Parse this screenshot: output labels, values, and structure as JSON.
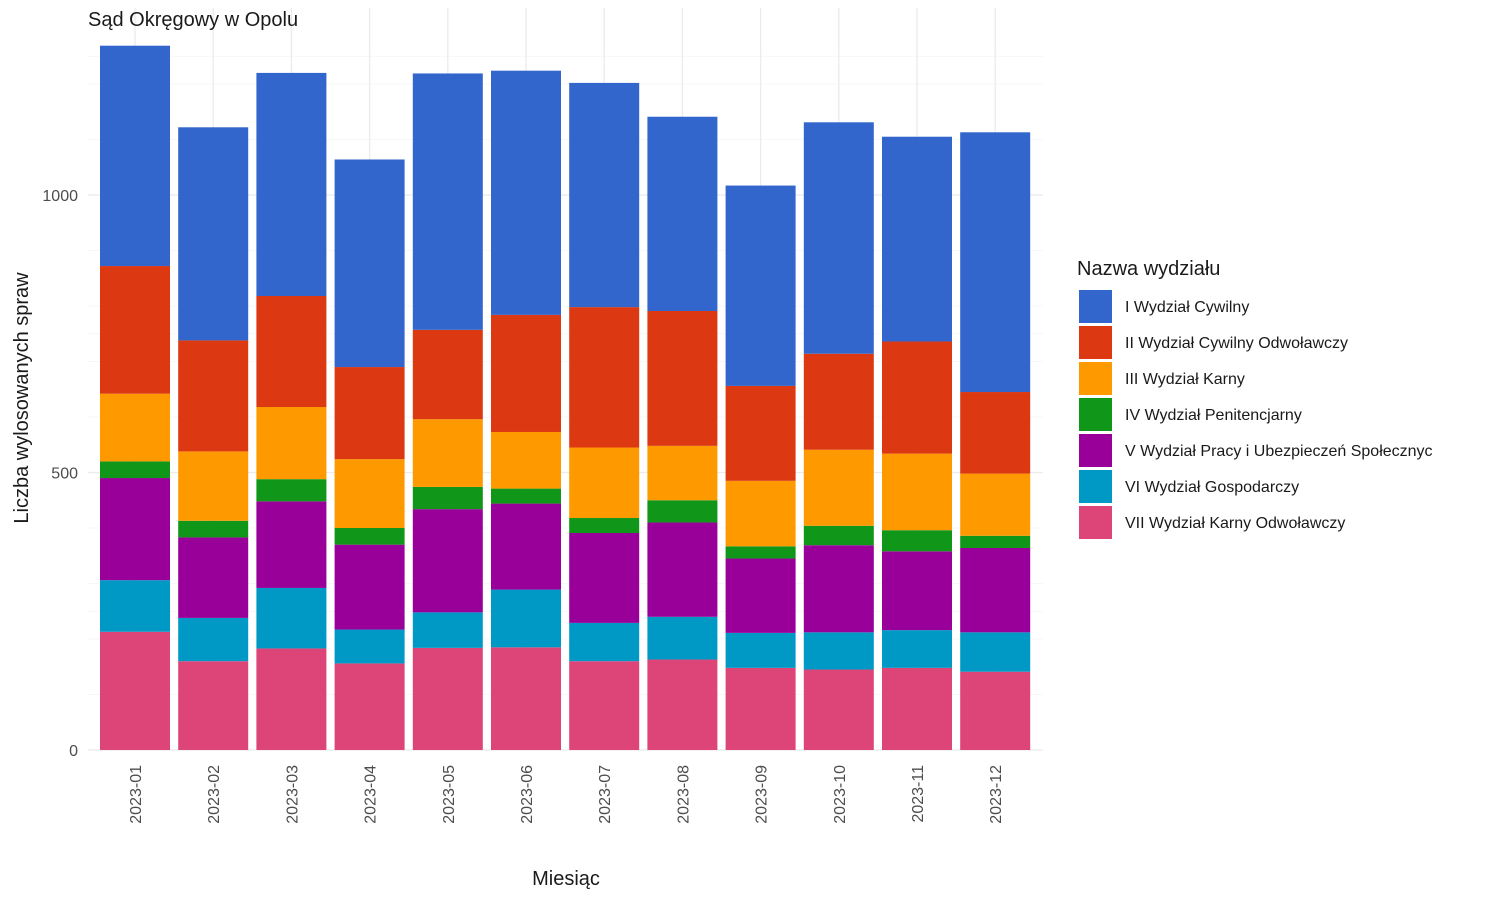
{
  "chart_data": {
    "type": "bar",
    "stacked": true,
    "title": "Sąd Okręgowy w Opolu",
    "xlabel": "Miesiąc",
    "ylabel": "Liczba wylosowanych spraw",
    "ylim": [
      0,
      1330
    ],
    "yticks": [
      0,
      500,
      1000
    ],
    "grid": true,
    "legend_position": "right",
    "legend_title": "Nazwa wydziału",
    "categories": [
      "2023-01",
      "2023-02",
      "2023-03",
      "2023-04",
      "2023-05",
      "2023-06",
      "2023-07",
      "2023-08",
      "2023-09",
      "2023-10",
      "2023-11",
      "2023-12"
    ],
    "series": [
      {
        "name": "I Wydział Cywilny",
        "color": "#3366cc",
        "values": [
          397,
          384,
          402,
          374,
          462,
          440,
          404,
          350,
          361,
          417,
          369,
          468
        ]
      },
      {
        "name": "II Wydział Cywilny Odwoławczy",
        "color": "#dc3912",
        "values": [
          230,
          200,
          200,
          166,
          161,
          211,
          253,
          243,
          171,
          173,
          202,
          147
        ]
      },
      {
        "name": "III Wydział Karny",
        "color": "#ff9900",
        "values": [
          122,
          125,
          130,
          124,
          122,
          102,
          127,
          98,
          118,
          137,
          138,
          112
        ]
      },
      {
        "name": "IV Wydział Penitencjarny",
        "color": "#109618",
        "values": [
          30,
          30,
          40,
          30,
          40,
          27,
          27,
          40,
          22,
          35,
          38,
          22
        ]
      },
      {
        "name": "V Wydział Pracy i Ubezpieczeń Społecznyc",
        "color": "#990099",
        "values": [
          184,
          145,
          156,
          153,
          186,
          155,
          162,
          170,
          134,
          157,
          142,
          152
        ]
      },
      {
        "name": "VI Wydział Gospodarczy",
        "color": "#0099c6",
        "values": [
          93,
          78,
          109,
          61,
          64,
          104,
          69,
          77,
          63,
          67,
          68,
          71
        ]
      },
      {
        "name": "VII Wydział Karny Odwoławczy",
        "color": "#dd4477",
        "values": [
          213,
          160,
          183,
          156,
          184,
          185,
          160,
          163,
          148,
          145,
          148,
          141
        ]
      }
    ]
  }
}
